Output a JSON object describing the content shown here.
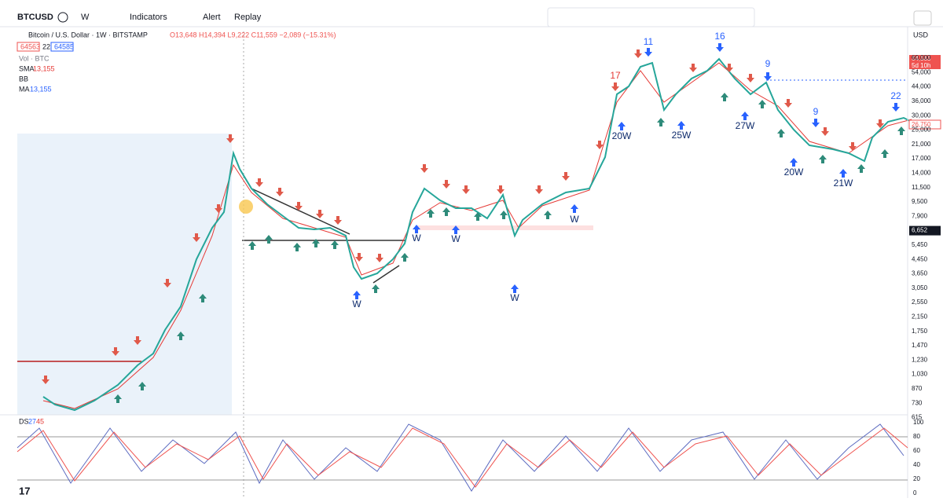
{
  "toolbar": {
    "symbol": "BTCUSD",
    "interval": "W",
    "indicators": "Indicators",
    "alert": "Alert",
    "replay": "Replay"
  },
  "legend": {
    "title": "Bitcoin / U.S. Dollar · 1W · BITSTAMP",
    "ohlc": "O13,648 H14,394 L9,222 C11,559 −2,089 (−15.31%)",
    "sell": "64563",
    "spread": "22",
    "buy": "64585",
    "vol": "Vol · BTC",
    "sma": "SMA",
    "sma_value": "13,155",
    "bb": "BB",
    "ma": "MA",
    "ma_value": "13,155"
  },
  "price_axis": {
    "currency": "USD",
    "labels": [
      "60,000",
      "54,000",
      "44,000",
      "36,000",
      "30,000",
      "25,000",
      "21,000",
      "17,000",
      "14,000",
      "11,500",
      "9,500",
      "7,900",
      "6,652",
      "5,450",
      "4,450",
      "3,650",
      "3,050",
      "2,550",
      "2,150",
      "1,750",
      "1,470",
      "1,230",
      "1,030",
      "870",
      "730",
      "615"
    ],
    "last_price": "64,585",
    "countdown": "5d 10h",
    "current": "26,750"
  },
  "annotations": [
    "17",
    "11",
    "16",
    "9",
    "9",
    "22",
    "20W",
    "25W",
    "27W",
    "20W",
    "21W",
    "W",
    "W",
    "W",
    "W",
    "W"
  ],
  "oscillator": {
    "name": "DS",
    "k": "27",
    "d": "45",
    "labels": [
      "100",
      "80",
      "60",
      "40",
      "20",
      "0"
    ]
  }
}
